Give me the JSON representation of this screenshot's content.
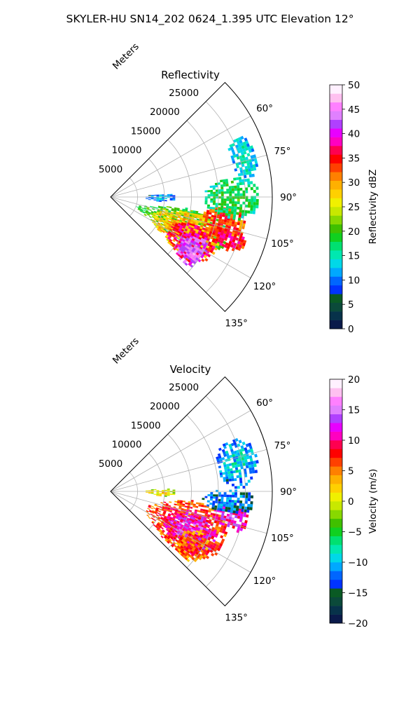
{
  "suptitle": "SKYLER-HU  SN14_202  0624_1.395 UTC Elevation 12°",
  "chart_data": [
    {
      "type": "heatmap",
      "title": "Reflectivity",
      "projection": "polar sector",
      "range_label": "Meters",
      "range_ticks": [
        5000,
        10000,
        15000,
        20000,
        25000
      ],
      "range_tick_labels": [
        "5000",
        "10000",
        "15000",
        "20000",
        "25000"
      ],
      "rmax": 30000,
      "angle_ticks": [
        60,
        75,
        90,
        105,
        120,
        135
      ],
      "angle_tick_labels": [
        "60°",
        "75°",
        "90°",
        "105°",
        "120°",
        "135°"
      ],
      "angle_range": [
        45,
        135
      ],
      "grid": true,
      "colorbar": {
        "label": "Reflectivity dBZ",
        "vmin": 0,
        "vmax": 50,
        "ticks": [
          0,
          5,
          10,
          15,
          20,
          25,
          30,
          35,
          40,
          45,
          50
        ],
        "tick_labels": [
          "0",
          "5",
          "10",
          "15",
          "20",
          "25",
          "30",
          "35",
          "40",
          "45",
          "50"
        ],
        "colors": [
          "#0a1a4a",
          "#07324a",
          "#0b4a3a",
          "#0a5a24",
          "#0033ff",
          "#0066ff",
          "#00a8ff",
          "#00d8e8",
          "#00e8b0",
          "#00e070",
          "#10d020",
          "#40c000",
          "#88d800",
          "#c8e800",
          "#f0f000",
          "#ffd000",
          "#ffb000",
          "#ff8000",
          "#ff4000",
          "#ff0000",
          "#ff0050",
          "#ff00c0",
          "#e800ff",
          "#b040ff",
          "#e080ff",
          "#ff80ff",
          "#ffc0f0",
          "#fff0ff"
        ]
      },
      "regions": [
        {
          "az": [
            98,
            122
          ],
          "r": [
            5000,
            23000
          ],
          "value": 22
        },
        {
          "az": [
            100,
            128
          ],
          "r": [
            8000,
            22000
          ],
          "value": 30
        },
        {
          "az": [
            107,
            130
          ],
          "r": [
            12000,
            21500
          ],
          "value": 38
        },
        {
          "az": [
            113,
            132
          ],
          "r": [
            15000,
            20500
          ],
          "value": 44
        },
        {
          "az": [
            94,
            110
          ],
          "r": [
            17000,
            25500
          ],
          "value": 34
        },
        {
          "az": [
            103,
            114
          ],
          "r": [
            19000,
            26500
          ],
          "value": 37
        },
        {
          "az": [
            80,
            100
          ],
          "r": [
            17000,
            27500
          ],
          "value": 19
        },
        {
          "az": [
            64,
            82
          ],
          "r": [
            23000,
            27800
          ],
          "value": 15
        },
        {
          "az": [
            86,
            95
          ],
          "r": [
            6000,
            12000
          ],
          "value": 12
        }
      ]
    },
    {
      "type": "heatmap",
      "title": "Velocity",
      "projection": "polar sector",
      "range_label": "Meters",
      "range_ticks": [
        5000,
        10000,
        15000,
        20000,
        25000
      ],
      "range_tick_labels": [
        "5000",
        "10000",
        "15000",
        "20000",
        "25000"
      ],
      "rmax": 30000,
      "angle_ticks": [
        60,
        75,
        90,
        105,
        120,
        135
      ],
      "angle_tick_labels": [
        "60°",
        "75°",
        "90°",
        "105°",
        "120°",
        "135°"
      ],
      "angle_range": [
        45,
        135
      ],
      "grid": true,
      "colorbar": {
        "label": "Velocity (m/s)",
        "vmin": -20,
        "vmax": 20,
        "ticks": [
          -20,
          -15,
          -10,
          -5,
          0,
          5,
          10,
          15,
          20
        ],
        "tick_labels": [
          "−20",
          "−15",
          "−10",
          "−5",
          "0",
          "5",
          "10",
          "15",
          "20"
        ],
        "colors": [
          "#0a1a4a",
          "#07324a",
          "#0b4a3a",
          "#0a5a24",
          "#0033ff",
          "#0066ff",
          "#00a8ff",
          "#00d8e8",
          "#00e8b0",
          "#00e070",
          "#10d020",
          "#40c000",
          "#88d800",
          "#c8e800",
          "#f0f000",
          "#ffd000",
          "#ffb000",
          "#ff8000",
          "#ff4000",
          "#ff0000",
          "#ff0050",
          "#ff00c0",
          "#e800ff",
          "#b040ff",
          "#e080ff",
          "#ff80ff",
          "#ffc0f0",
          "#fff0ff"
        ]
      },
      "regions": [
        {
          "az": [
            96,
            132
          ],
          "r": [
            7000,
            23000
          ],
          "value": 9
        },
        {
          "az": [
            104,
            128
          ],
          "r": [
            11000,
            21500
          ],
          "value": 13
        },
        {
          "az": [
            113,
            132
          ],
          "r": [
            15000,
            21000
          ],
          "value": 7
        },
        {
          "az": [
            96,
            108
          ],
          "r": [
            19000,
            26000
          ],
          "value": 12
        },
        {
          "az": [
            88,
            100
          ],
          "r": [
            17000,
            26500
          ],
          "value": -11
        },
        {
          "az": [
            66,
            88
          ],
          "r": [
            20000,
            27800
          ],
          "value": -9
        },
        {
          "az": [
            86,
            95
          ],
          "r": [
            6000,
            12000
          ],
          "value": 2
        }
      ]
    }
  ]
}
